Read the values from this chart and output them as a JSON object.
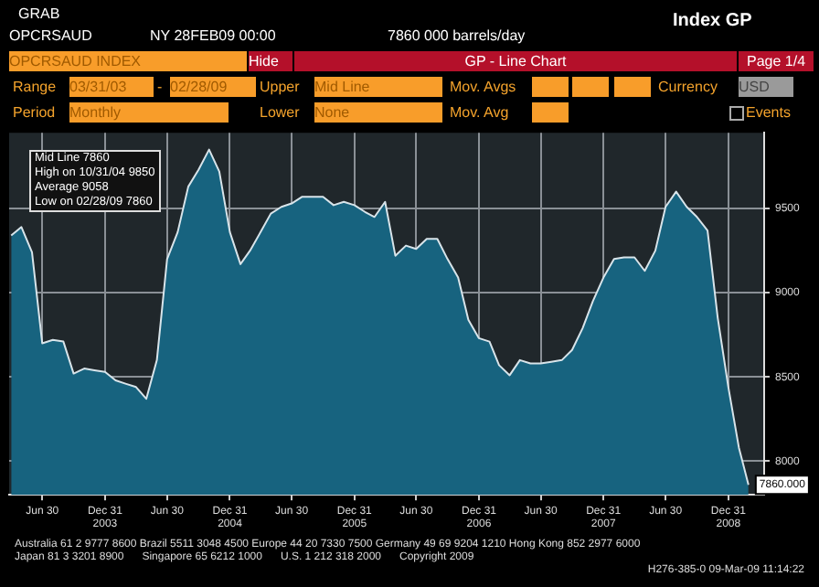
{
  "chart_data": {
    "type": "area",
    "x": [
      "2003-03-31",
      "2003-04-30",
      "2003-05-31",
      "2003-06-30",
      "2003-07-31",
      "2003-08-31",
      "2003-09-30",
      "2003-10-31",
      "2003-11-30",
      "2003-12-31",
      "2004-01-31",
      "2004-02-29",
      "2004-03-31",
      "2004-04-30",
      "2004-05-31",
      "2004-06-30",
      "2004-07-31",
      "2004-08-31",
      "2004-09-30",
      "2004-10-31",
      "2004-11-30",
      "2004-12-31",
      "2005-01-31",
      "2005-02-28",
      "2005-03-31",
      "2005-04-30",
      "2005-05-31",
      "2005-06-30",
      "2005-07-31",
      "2005-08-31",
      "2005-09-30",
      "2005-10-31",
      "2005-11-30",
      "2005-12-31",
      "2006-01-31",
      "2006-02-28",
      "2006-03-31",
      "2006-04-30",
      "2006-05-31",
      "2006-06-30",
      "2006-07-31",
      "2006-08-31",
      "2006-09-30",
      "2006-10-31",
      "2006-11-30",
      "2006-12-31",
      "2007-01-31",
      "2007-02-28",
      "2007-03-31",
      "2007-04-30",
      "2007-05-31",
      "2007-06-30",
      "2007-07-31",
      "2007-08-31",
      "2007-09-30",
      "2007-10-31",
      "2007-11-30",
      "2007-12-31",
      "2008-01-31",
      "2008-02-29",
      "2008-03-31",
      "2008-04-30",
      "2008-05-31",
      "2008-06-30",
      "2008-07-31",
      "2008-08-31",
      "2008-09-30",
      "2008-10-31",
      "2008-11-30",
      "2008-12-31",
      "2009-01-31",
      "2009-02-28"
    ],
    "series": [
      {
        "color": "#17637f",
        "values": [
          9340,
          9390,
          9240,
          8700,
          8720,
          8710,
          8520,
          8550,
          8540,
          8530,
          8480,
          8460,
          8440,
          8370,
          8600,
          9200,
          9360,
          9630,
          9730,
          9850,
          9720,
          9360,
          9170,
          9250,
          9360,
          9470,
          9510,
          9530,
          9570,
          9570,
          9570,
          9520,
          9540,
          9520,
          9480,
          9450,
          9540,
          9220,
          9280,
          9260,
          9320,
          9320,
          9200,
          9090,
          8840,
          8730,
          8710,
          8570,
          8510,
          8600,
          8580,
          8580,
          8590,
          8600,
          8660,
          8790,
          8950,
          9090,
          9200,
          9210,
          9210,
          9130,
          9250,
          9510,
          9600,
          9510,
          9450,
          9370,
          8850,
          8440,
          8080,
          7860
        ]
      }
    ],
    "xlim": [
      "2003-03-25",
      "2009-04-15"
    ],
    "xticks": [
      {
        "value": "2003-06-30",
        "label": "Jun 30"
      },
      {
        "value": "2003-12-31",
        "label": "Dec 31\n2003"
      },
      {
        "value": "2004-06-30",
        "label": "Jun 30"
      },
      {
        "value": "2004-12-31",
        "label": "Dec 31\n2004"
      },
      {
        "value": "2005-06-30",
        "label": "Jun 30"
      },
      {
        "value": "2005-12-31",
        "label": "Dec 31\n2005"
      },
      {
        "value": "2006-06-30",
        "label": "Jun 30"
      },
      {
        "value": "2006-12-31",
        "label": "Dec 31\n2006"
      },
      {
        "value": "2007-06-30",
        "label": "Jun 30"
      },
      {
        "value": "2007-12-31",
        "label": "Dec 31\n2007"
      },
      {
        "value": "2008-06-30",
        "label": "Jun 30"
      },
      {
        "value": "2008-12-31",
        "label": "Dec 31\n2008"
      }
    ],
    "ylim": [
      7800,
      9950
    ],
    "yticks": [
      8000,
      8500,
      9000,
      9500
    ],
    "grid": true,
    "line_style": "solid",
    "annotations": [
      "GRAB",
      "OPCRSAUD",
      "NY 28FEB09 00:00",
      "7860 000 barrels/day",
      "Index GP",
      "OPCRSAUD INDEX",
      "Hide",
      "GP - Line Chart",
      "Page 1/4",
      "Range",
      "03/31/03",
      "-",
      "02/28/09",
      "Upper",
      "Mid Line",
      "Mov. Avgs",
      "Currency",
      "USD",
      "Period",
      "Monthly",
      "Lower",
      "None",
      "Mov. Avg",
      "Events",
      "Mid Line 7860",
      "High on 10/31/04 9850",
      "Average 9058",
      "Low on 02/28/09 7860",
      {
        "text": "7860.000",
        "x": "2009-02-28",
        "y": 7860
      },
      "Australia 61 2 9777 8600 Brazil 5511 3048 4500 Europe 44 20 7330 7500 Germany 49 69 9204 1210 Hong Kong 852 2977 6000",
      "Japan 81 3 3201 8900      Singapore 65 6212 1000      U.S. 1 212 318 2000      Copyright 2009",
      "H276-385-0 09-Mar-09 11:14:22"
    ]
  }
}
